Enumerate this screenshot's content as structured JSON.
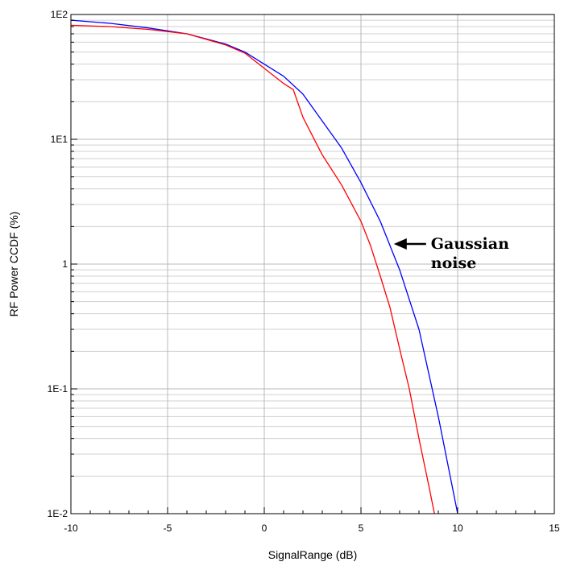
{
  "chart_data": {
    "type": "line",
    "title": "",
    "xlabel": "SignalRange (dB)",
    "ylabel": "RF Power CCDF (%)",
    "xlim": [
      -10,
      15
    ],
    "ylim": [
      0.01,
      100
    ],
    "yscale": "log",
    "grid": true,
    "x_ticks": [
      -10,
      -5,
      0,
      5,
      10,
      15
    ],
    "x_tick_labels": [
      "-10",
      "-5",
      "0",
      "5",
      "10",
      "15"
    ],
    "y_ticks": [
      0.01,
      0.1,
      1,
      10,
      100
    ],
    "y_tick_labels": [
      "1E-2",
      "1E-1",
      "1",
      "1E1",
      "1E2"
    ],
    "series": [
      {
        "color": "#0000ff",
        "x": [
          -10,
          -8,
          -6,
          -4,
          -2,
          -1,
          0,
          1,
          2,
          3,
          4,
          5,
          6,
          7,
          8,
          9,
          10
        ],
        "y": [
          90,
          85,
          78,
          70,
          58,
          50,
          40,
          32,
          23,
          14,
          8.5,
          4.5,
          2.2,
          0.9,
          0.3,
          0.06,
          0.01
        ]
      },
      {
        "color": "#ff0000",
        "x": [
          -10,
          -8,
          -6,
          -4,
          -2,
          -1,
          0,
          1,
          1.5,
          2,
          3,
          4,
          5,
          5.5,
          6,
          6.5,
          7,
          7.5,
          8,
          8.5,
          8.8
        ],
        "y": [
          82,
          80,
          76,
          70,
          57,
          49,
          37,
          28,
          25,
          15,
          7.5,
          4.3,
          2.2,
          1.4,
          0.8,
          0.45,
          0.21,
          0.1,
          0.04,
          0.017,
          0.01
        ]
      }
    ],
    "annotations": [
      {
        "text_lines": [
          "Gaussian",
          "noise"
        ],
        "x": 6.7,
        "y": 1.45
      }
    ]
  }
}
